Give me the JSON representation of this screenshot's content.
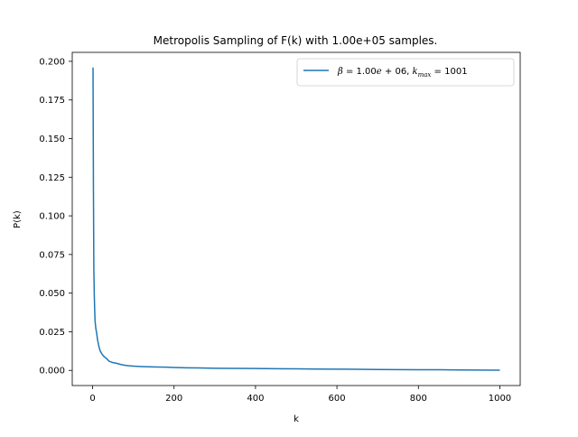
{
  "chart_data": {
    "type": "line",
    "title": "Metropolis Sampling of F(k) with 1.00e+05 samples.",
    "xlabel": "k",
    "ylabel": "P(k)",
    "xlim": [
      -50,
      1050
    ],
    "ylim": [
      -0.0098,
      0.2058
    ],
    "xticks": [
      0,
      200,
      400,
      600,
      800,
      1000
    ],
    "xtick_labels": [
      "0",
      "200",
      "400",
      "600",
      "800",
      "1000"
    ],
    "yticks": [
      0.0,
      0.025,
      0.05,
      0.075,
      0.1,
      0.125,
      0.15,
      0.175,
      0.2
    ],
    "ytick_labels": [
      "0.000",
      "0.025",
      "0.050",
      "0.075",
      "0.100",
      "0.125",
      "0.150",
      "0.175",
      "0.200"
    ],
    "grid": false,
    "legend_position": "top-right",
    "series": [
      {
        "name": "β = 1.00e+06, k_max = 1001",
        "legend_parts": {
          "beta_symbol": "β",
          "beta_text": " = 1.00",
          "e_var": "e",
          "beta_rest": " + 06, ",
          "k_var": "k",
          "k_sub": "max",
          "k_text": " = 1001"
        },
        "color": "#1f77b4",
        "x": [
          1,
          2,
          3,
          4,
          5,
          6,
          8,
          10,
          12,
          15,
          18,
          22,
          26,
          30,
          35,
          40,
          45,
          50,
          55,
          60,
          70,
          80,
          90,
          100,
          120,
          140,
          160,
          180,
          200,
          230,
          260,
          300,
          350,
          400,
          450,
          500,
          550,
          600,
          650,
          700,
          750,
          800,
          850,
          900,
          950,
          1000
        ],
        "y": [
          0.196,
          0.12,
          0.066,
          0.05,
          0.04,
          0.032,
          0.027,
          0.024,
          0.02,
          0.016,
          0.013,
          0.011,
          0.0095,
          0.0085,
          0.0075,
          0.006,
          0.0055,
          0.005,
          0.0048,
          0.0045,
          0.0038,
          0.0033,
          0.003,
          0.0028,
          0.0025,
          0.0023,
          0.0022,
          0.0021,
          0.0019,
          0.0017,
          0.0016,
          0.0014,
          0.0013,
          0.0012,
          0.0011,
          0.001,
          0.0009,
          0.0008,
          0.0007,
          0.0006,
          0.0005,
          0.0004,
          0.0004,
          0.0003,
          0.0002,
          0.0001
        ]
      }
    ]
  }
}
